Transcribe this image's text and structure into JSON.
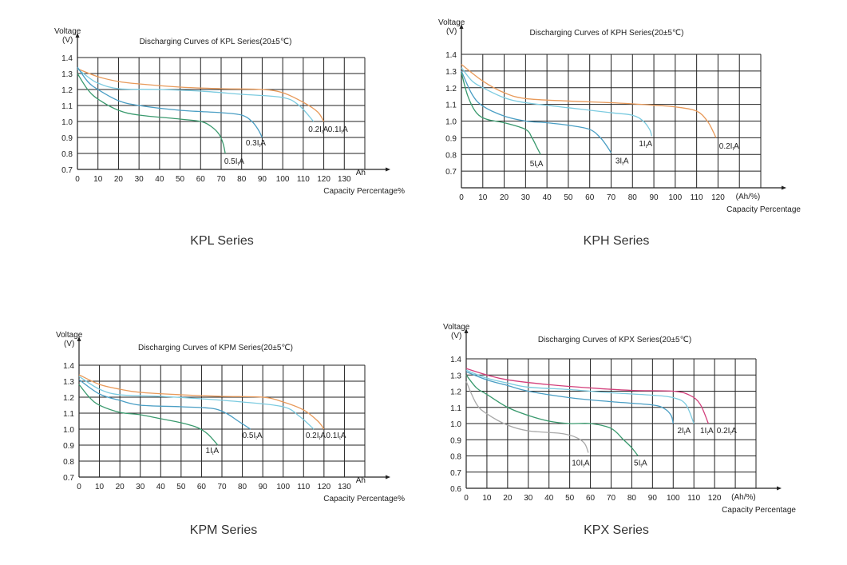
{
  "chart_data": [
    {
      "type": "line",
      "title": "Discharging Curves of KPL Series(20±5℃)",
      "caption": "KPL Series",
      "ylabel": "Voltage",
      "yunit": "(V)",
      "xunit": "Ah",
      "xlabel": "Capacity Percentage%",
      "xlim": [
        0,
        140
      ],
      "ylim": [
        0.7,
        1.4
      ],
      "xticks": [
        0,
        10,
        20,
        30,
        40,
        50,
        60,
        70,
        80,
        90,
        100,
        110,
        120,
        130
      ],
      "yticks": [
        "0.7",
        "0.8",
        "0.9",
        "1.0",
        "1.1",
        "1.2",
        "1.3",
        "1.4"
      ],
      "grid": true,
      "series": [
        {
          "name": "0.1ItA",
          "color": "#e89a5a",
          "points": [
            [
              0,
              1.33
            ],
            [
              10,
              1.28
            ],
            [
              20,
              1.25
            ],
            [
              30,
              1.235
            ],
            [
              50,
              1.215
            ],
            [
              70,
              1.205
            ],
            [
              90,
              1.2
            ],
            [
              100,
              1.18
            ],
            [
              110,
              1.12
            ],
            [
              117,
              1.06
            ],
            [
              120,
              1.0
            ]
          ]
        },
        {
          "name": "0.2ItA",
          "color": "#7ccbe0",
          "points": [
            [
              0,
              1.33
            ],
            [
              5,
              1.28
            ],
            [
              10,
              1.24
            ],
            [
              20,
              1.205
            ],
            [
              40,
              1.2
            ],
            [
              60,
              1.19
            ],
            [
              80,
              1.17
            ],
            [
              100,
              1.15
            ],
            [
              108,
              1.1
            ],
            [
              115,
              1.0
            ]
          ]
        },
        {
          "name": "0.3ItA",
          "color": "#4a9ec4",
          "points": [
            [
              0,
              1.34
            ],
            [
              5,
              1.25
            ],
            [
              10,
              1.2
            ],
            [
              20,
              1.13
            ],
            [
              30,
              1.1
            ],
            [
              50,
              1.07
            ],
            [
              70,
              1.055
            ],
            [
              80,
              1.04
            ],
            [
              85,
              1.0
            ],
            [
              88,
              0.95
            ],
            [
              90,
              0.9
            ]
          ]
        },
        {
          "name": "0.5ItA",
          "color": "#3a9a6e",
          "points": [
            [
              0,
              1.3
            ],
            [
              5,
              1.2
            ],
            [
              10,
              1.14
            ],
            [
              20,
              1.07
            ],
            [
              30,
              1.04
            ],
            [
              50,
              1.015
            ],
            [
              60,
              1.0
            ],
            [
              65,
              0.97
            ],
            [
              69,
              0.92
            ],
            [
              71,
              0.86
            ],
            [
              72,
              0.8
            ]
          ]
        }
      ]
    },
    {
      "type": "line",
      "title": "Discharging Curves of KPH Series(20±5℃)",
      "caption": "KPH Series",
      "ylabel": "Voltage",
      "yunit": "(V)",
      "xunit": "(Ah/%)",
      "xlabel": "Capacity Percentage",
      "xlim": [
        0,
        140
      ],
      "ylim": [
        0.6,
        1.4
      ],
      "xticks": [
        0,
        10,
        20,
        30,
        40,
        50,
        60,
        70,
        80,
        90,
        100,
        110,
        120
      ],
      "yticks": [
        "0.7",
        "0.8",
        "0.9",
        "1.0",
        "1.1",
        "1.2",
        "1.3",
        "1.4"
      ],
      "grid": true,
      "series": [
        {
          "name": "0.2ItA",
          "color": "#e89a5a",
          "points": [
            [
              0,
              1.34
            ],
            [
              10,
              1.24
            ],
            [
              20,
              1.17
            ],
            [
              30,
              1.135
            ],
            [
              50,
              1.12
            ],
            [
              70,
              1.11
            ],
            [
              90,
              1.095
            ],
            [
              100,
              1.085
            ],
            [
              110,
              1.06
            ],
            [
              115,
              1.0
            ],
            [
              118,
              0.93
            ],
            [
              119,
              0.9
            ]
          ]
        },
        {
          "name": "1ItA",
          "color": "#7ccbe0",
          "points": [
            [
              0,
              1.32
            ],
            [
              5,
              1.24
            ],
            [
              10,
              1.2
            ],
            [
              20,
              1.14
            ],
            [
              30,
              1.11
            ],
            [
              50,
              1.08
            ],
            [
              70,
              1.05
            ],
            [
              80,
              1.035
            ],
            [
              85,
              1.0
            ],
            [
              88,
              0.95
            ],
            [
              89,
              0.91
            ]
          ]
        },
        {
          "name": "3ItA",
          "color": "#4a9ec4",
          "points": [
            [
              0,
              1.3
            ],
            [
              5,
              1.16
            ],
            [
              10,
              1.09
            ],
            [
              20,
              1.03
            ],
            [
              30,
              1.0
            ],
            [
              40,
              0.99
            ],
            [
              50,
              0.975
            ],
            [
              60,
              0.95
            ],
            [
              65,
              0.9
            ],
            [
              68,
              0.85
            ],
            [
              70,
              0.81
            ]
          ]
        },
        {
          "name": "5ItA",
          "color": "#3a9a6e",
          "points": [
            [
              0,
              1.29
            ],
            [
              3,
              1.15
            ],
            [
              7,
              1.05
            ],
            [
              12,
              1.01
            ],
            [
              20,
              0.99
            ],
            [
              30,
              0.95
            ],
            [
              33,
              0.9
            ],
            [
              35,
              0.85
            ],
            [
              37,
              0.8
            ]
          ]
        }
      ]
    },
    {
      "type": "line",
      "title": "Discharging Curves of KPM Series(20±5℃)",
      "caption": "KPM Series",
      "ylabel": "Voltage",
      "yunit": "(V)",
      "xunit": "Ah",
      "xlabel": "Capacity Percentage%",
      "xlim": [
        0,
        140
      ],
      "ylim": [
        0.7,
        1.4
      ],
      "xticks": [
        0,
        10,
        20,
        30,
        40,
        50,
        60,
        70,
        80,
        90,
        100,
        110,
        120,
        130
      ],
      "yticks": [
        "0.7",
        "0.8",
        "0.9",
        "1.0",
        "1.1",
        "1.2",
        "1.3",
        "1.4"
      ],
      "grid": true,
      "series": [
        {
          "name": "0.1ItA",
          "color": "#e89a5a",
          "points": [
            [
              0,
              1.34
            ],
            [
              10,
              1.28
            ],
            [
              20,
              1.25
            ],
            [
              30,
              1.23
            ],
            [
              50,
              1.215
            ],
            [
              70,
              1.205
            ],
            [
              90,
              1.2
            ],
            [
              100,
              1.17
            ],
            [
              110,
              1.12
            ],
            [
              117,
              1.05
            ],
            [
              120,
              1.0
            ]
          ]
        },
        {
          "name": "0.2ItA",
          "color": "#7ccbe0",
          "points": [
            [
              0,
              1.33
            ],
            [
              10,
              1.25
            ],
            [
              20,
              1.215
            ],
            [
              40,
              1.205
            ],
            [
              60,
              1.19
            ],
            [
              80,
              1.17
            ],
            [
              100,
              1.14
            ],
            [
              108,
              1.08
            ],
            [
              115,
              1.0
            ]
          ]
        },
        {
          "name": "0.5ItA",
          "color": "#4a9ec4",
          "points": [
            [
              0,
              1.31
            ],
            [
              10,
              1.22
            ],
            [
              20,
              1.18
            ],
            [
              30,
              1.15
            ],
            [
              50,
              1.14
            ],
            [
              65,
              1.13
            ],
            [
              72,
              1.1
            ],
            [
              78,
              1.05
            ],
            [
              84,
              1.0
            ]
          ]
        },
        {
          "name": "1ItA",
          "color": "#3a9a6e",
          "points": [
            [
              0,
              1.28
            ],
            [
              5,
              1.2
            ],
            [
              10,
              1.15
            ],
            [
              20,
              1.105
            ],
            [
              30,
              1.09
            ],
            [
              40,
              1.065
            ],
            [
              50,
              1.04
            ],
            [
              58,
              1.01
            ],
            [
              63,
              0.97
            ],
            [
              68,
              0.9
            ]
          ]
        }
      ]
    },
    {
      "type": "line",
      "title": "Discharging Curves of KPX Series(20±5℃)",
      "caption": "KPX Series",
      "ylabel": "Voltage",
      "yunit": "(V)",
      "xunit": "(Ah/%)",
      "xlabel": "Capacity Percentage",
      "xlim": [
        0,
        140
      ],
      "ylim": [
        0.6,
        1.4
      ],
      "xticks": [
        0,
        10,
        20,
        30,
        40,
        50,
        60,
        70,
        80,
        90,
        100,
        110,
        120
      ],
      "yticks": [
        "0.6",
        "0.7",
        "0.8",
        "0.9",
        "1.0",
        "1.1",
        "1.2",
        "1.3",
        "1.4"
      ],
      "grid": true,
      "series": [
        {
          "name": "0.2ItA",
          "color": "#d3407c",
          "points": [
            [
              0,
              1.34
            ],
            [
              10,
              1.3
            ],
            [
              20,
              1.27
            ],
            [
              40,
              1.24
            ],
            [
              60,
              1.22
            ],
            [
              80,
              1.205
            ],
            [
              100,
              1.2
            ],
            [
              108,
              1.175
            ],
            [
              113,
              1.12
            ],
            [
              117,
              1.0
            ]
          ]
        },
        {
          "name": "1ItA",
          "color": "#7ccbe0",
          "points": [
            [
              0,
              1.33
            ],
            [
              10,
              1.28
            ],
            [
              20,
              1.25
            ],
            [
              30,
              1.225
            ],
            [
              50,
              1.21
            ],
            [
              70,
              1.19
            ],
            [
              90,
              1.175
            ],
            [
              100,
              1.16
            ],
            [
              106,
              1.12
            ],
            [
              110,
              1.0
            ]
          ]
        },
        {
          "name": "2ItA",
          "color": "#4a9ec4",
          "points": [
            [
              0,
              1.32
            ],
            [
              10,
              1.27
            ],
            [
              20,
              1.235
            ],
            [
              30,
              1.2
            ],
            [
              50,
              1.16
            ],
            [
              70,
              1.135
            ],
            [
              90,
              1.115
            ],
            [
              96,
              1.09
            ],
            [
              99,
              1.05
            ],
            [
              100,
              1.0
            ]
          ]
        },
        {
          "name": "5ItA",
          "color": "#3a9a6e",
          "points": [
            [
              0,
              1.3
            ],
            [
              5,
              1.22
            ],
            [
              10,
              1.18
            ],
            [
              20,
              1.1
            ],
            [
              30,
              1.05
            ],
            [
              40,
              1.015
            ],
            [
              50,
              1.0
            ],
            [
              60,
              1.0
            ],
            [
              70,
              0.97
            ],
            [
              76,
              0.9
            ],
            [
              80,
              0.85
            ],
            [
              83,
              0.8
            ]
          ]
        },
        {
          "name": "10ItA",
          "color": "#a8a8a8",
          "points": [
            [
              0,
              1.26
            ],
            [
              5,
              1.12
            ],
            [
              10,
              1.06
            ],
            [
              20,
              0.99
            ],
            [
              30,
              0.955
            ],
            [
              45,
              0.94
            ],
            [
              52,
              0.92
            ],
            [
              57,
              0.88
            ],
            [
              59,
              0.82
            ]
          ]
        }
      ]
    }
  ]
}
